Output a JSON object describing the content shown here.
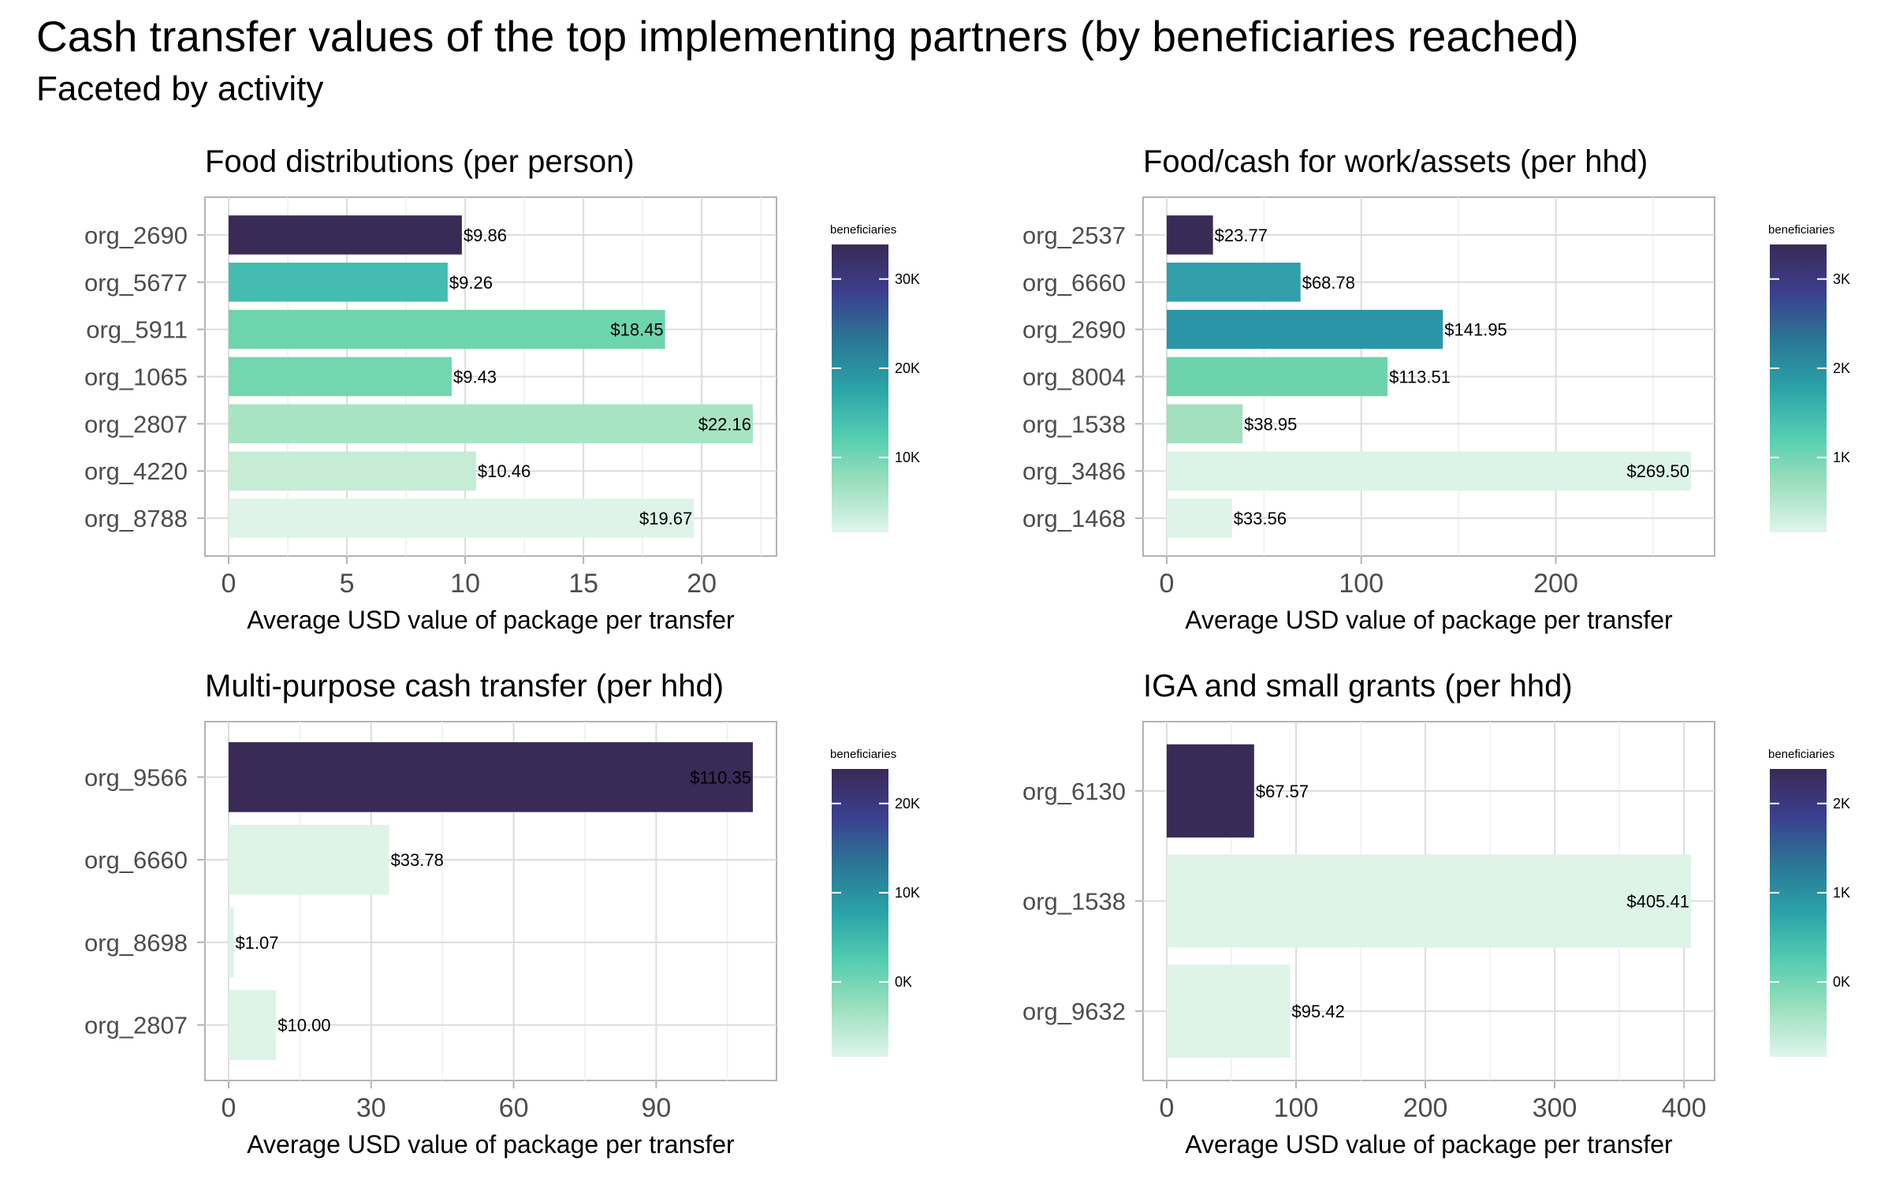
{
  "title": "Cash transfer values of the top implementing partners (by beneficiaries reached)",
  "subtitle": "Faceted by activity",
  "chart_data": [
    {
      "type": "bar",
      "orientation": "horizontal",
      "title": "Food distributions (per person)",
      "xlabel": "Average USD value of package per transfer",
      "ylabel": "",
      "xlim": [
        0,
        22.16
      ],
      "xticks": [
        0,
        5,
        10,
        15,
        20
      ],
      "categories": [
        "org_2690",
        "org_5677",
        "org_5911",
        "org_1065",
        "org_2807",
        "org_4220",
        "org_8788"
      ],
      "values": [
        9.86,
        9.26,
        18.45,
        9.43,
        22.16,
        10.46,
        19.67
      ],
      "labels": [
        "$9.86",
        "$9.26",
        "$18.45",
        "$9.43",
        "$22.16",
        "$10.46",
        "$19.67"
      ],
      "colors": [
        "#3a2a56",
        "#45bcb0",
        "#6dd4ae",
        "#72d7ae",
        "#a8e4c2",
        "#c6ecd6",
        "#def4e8"
      ],
      "legend": {
        "title": "beneficiaries",
        "ticks": [
          "30K",
          "20K",
          "10K"
        ],
        "position": "right"
      }
    },
    {
      "type": "bar",
      "orientation": "horizontal",
      "title": "Food/cash for work/assets (per hhd)",
      "xlabel": "Average USD value of package per transfer",
      "ylabel": "",
      "xlim": [
        0,
        269.5
      ],
      "xticks": [
        0,
        100,
        200
      ],
      "categories": [
        "org_2537",
        "org_6660",
        "org_2690",
        "org_8004",
        "org_1538",
        "org_3486",
        "org_1468"
      ],
      "values": [
        23.77,
        68.78,
        141.95,
        113.51,
        38.95,
        269.5,
        33.56
      ],
      "labels": [
        "$23.77",
        "$68.78",
        "$141.95",
        "$113.51",
        "$38.95",
        "$269.50",
        "$33.56"
      ],
      "colors": [
        "#3a2a56",
        "#31a0ab",
        "#2a95a6",
        "#6cd3ad",
        "#a2e0be",
        "#dcf4e7",
        "#def4e8"
      ],
      "legend": {
        "title": "beneficiaries",
        "ticks": [
          "3K",
          "2K",
          "1K"
        ],
        "position": "right"
      }
    },
    {
      "type": "bar",
      "orientation": "horizontal",
      "title": "Multi-purpose cash transfer (per hhd)",
      "xlabel": "Average USD value of package per transfer",
      "ylabel": "",
      "xlim": [
        0,
        110.35
      ],
      "xticks": [
        0,
        30,
        60,
        90
      ],
      "categories": [
        "org_9566",
        "org_6660",
        "org_8698",
        "org_2807"
      ],
      "values": [
        110.35,
        33.78,
        1.07,
        10.0
      ],
      "labels": [
        "$110.35",
        "$33.78",
        "$1.07",
        "$10.00"
      ],
      "colors": [
        "#3a2a56",
        "#ddf4e7",
        "#ddf4e7",
        "#ddf4e7"
      ],
      "legend": {
        "title": "beneficiaries",
        "ticks": [
          "20K",
          "10K",
          "0K"
        ],
        "position": "right"
      }
    },
    {
      "type": "bar",
      "orientation": "horizontal",
      "title": "IGA and small grants (per hhd)",
      "xlabel": "Average USD value of package per transfer",
      "ylabel": "",
      "xlim": [
        0,
        405.41
      ],
      "xticks": [
        0,
        100,
        200,
        300,
        400
      ],
      "categories": [
        "org_6130",
        "org_1538",
        "org_9632"
      ],
      "values": [
        67.57,
        405.41,
        95.42
      ],
      "labels": [
        "$67.57",
        "$405.41",
        "$95.42"
      ],
      "colors": [
        "#3a2a56",
        "#ddf4e7",
        "#ddf4e7"
      ],
      "legend": {
        "title": "beneficiaries",
        "ticks": [
          "2K",
          "1K",
          "0K"
        ],
        "position": "right"
      }
    }
  ]
}
